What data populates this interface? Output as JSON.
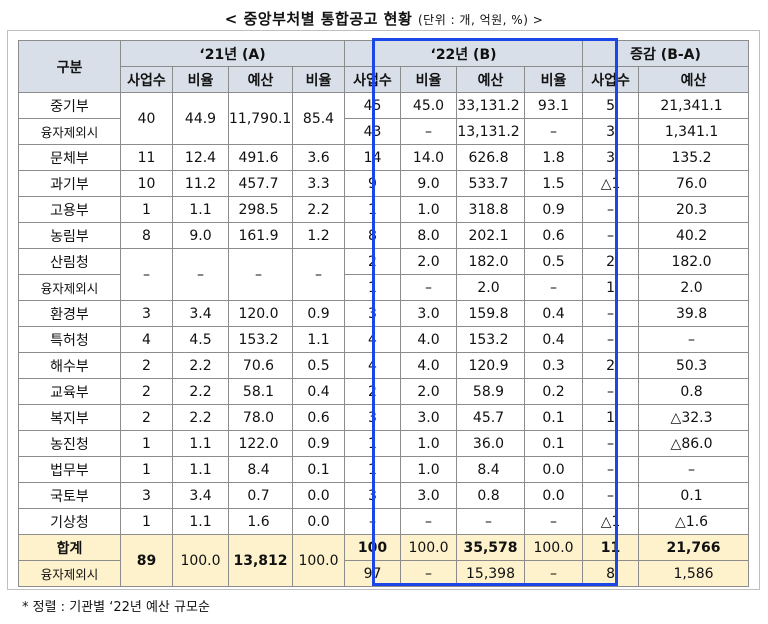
{
  "title": "< 중앙부처별 통합공고 현황",
  "unit": "(단위 : 개, 억원, %) >",
  "headers": {
    "category": "구분",
    "y21": "‘21년 (A)",
    "y22": "‘22년 (B)",
    "diff": "증감 (B-A)",
    "count": "사업수",
    "ratio": "비율",
    "budget": "예산"
  },
  "rows": [
    {
      "name": "중기부",
      "c21": "40",
      "r21": "44.9",
      "b21": "11,790.1",
      "br21": "85.4",
      "c22": "45",
      "r22": "45.0",
      "b22": "33,131.2",
      "br22": "93.1",
      "dc": "5",
      "db": "21,341.1"
    },
    {
      "name": "융자제외시",
      "c22": "43",
      "r22": "–",
      "b22": "13,131.2",
      "br22": "–",
      "dc": "3",
      "db": "1,341.1"
    },
    {
      "name": "문체부",
      "c21": "11",
      "r21": "12.4",
      "b21": "491.6",
      "br21": "3.6",
      "c22": "14",
      "r22": "14.0",
      "b22": "626.8",
      "br22": "1.8",
      "dc": "3",
      "db": "135.2"
    },
    {
      "name": "과기부",
      "c21": "10",
      "r21": "11.2",
      "b21": "457.7",
      "br21": "3.3",
      "c22": "9",
      "r22": "9.0",
      "b22": "533.7",
      "br22": "1.5",
      "dc": "△1",
      "db": "76.0"
    },
    {
      "name": "고용부",
      "c21": "1",
      "r21": "1.1",
      "b21": "298.5",
      "br21": "2.2",
      "c22": "1",
      "r22": "1.0",
      "b22": "318.8",
      "br22": "0.9",
      "dc": "–",
      "db": "20.3"
    },
    {
      "name": "농림부",
      "c21": "8",
      "r21": "9.0",
      "b21": "161.9",
      "br21": "1.2",
      "c22": "8",
      "r22": "8.0",
      "b22": "202.1",
      "br22": "0.6",
      "dc": "–",
      "db": "40.2"
    },
    {
      "name": "산림청",
      "c21": "–",
      "r21": "–",
      "b21": "–",
      "br21": "–",
      "c22": "2",
      "r22": "2.0",
      "b22": "182.0",
      "br22": "0.5",
      "dc": "2",
      "db": "182.0"
    },
    {
      "name": "융자제외시",
      "c22": "1",
      "r22": "–",
      "b22": "2.0",
      "br22": "–",
      "dc": "1",
      "db": "2.0"
    },
    {
      "name": "환경부",
      "c21": "3",
      "r21": "3.4",
      "b21": "120.0",
      "br21": "0.9",
      "c22": "3",
      "r22": "3.0",
      "b22": "159.8",
      "br22": "0.4",
      "dc": "–",
      "db": "39.8"
    },
    {
      "name": "특허청",
      "c21": "4",
      "r21": "4.5",
      "b21": "153.2",
      "br21": "1.1",
      "c22": "4",
      "r22": "4.0",
      "b22": "153.2",
      "br22": "0.4",
      "dc": "–",
      "db": "–"
    },
    {
      "name": "해수부",
      "c21": "2",
      "r21": "2.2",
      "b21": "70.6",
      "br21": "0.5",
      "c22": "4",
      "r22": "4.0",
      "b22": "120.9",
      "br22": "0.3",
      "dc": "2",
      "db": "50.3"
    },
    {
      "name": "교육부",
      "c21": "2",
      "r21": "2.2",
      "b21": "58.1",
      "br21": "0.4",
      "c22": "2",
      "r22": "2.0",
      "b22": "58.9",
      "br22": "0.2",
      "dc": "–",
      "db": "0.8"
    },
    {
      "name": "복지부",
      "c21": "2",
      "r21": "2.2",
      "b21": "78.0",
      "br21": "0.6",
      "c22": "3",
      "r22": "3.0",
      "b22": "45.7",
      "br22": "0.1",
      "dc": "1",
      "db": "△32.3"
    },
    {
      "name": "농진청",
      "c21": "1",
      "r21": "1.1",
      "b21": "122.0",
      "br21": "0.9",
      "c22": "1",
      "r22": "1.0",
      "b22": "36.0",
      "br22": "0.1",
      "dc": "–",
      "db": "△86.0"
    },
    {
      "name": "법무부",
      "c21": "1",
      "r21": "1.1",
      "b21": "8.4",
      "br21": "0.1",
      "c22": "1",
      "r22": "1.0",
      "b22": "8.4",
      "br22": "0.0",
      "dc": "–",
      "db": "–"
    },
    {
      "name": "국토부",
      "c21": "3",
      "r21": "3.4",
      "b21": "0.7",
      "br21": "0.0",
      "c22": "3",
      "r22": "3.0",
      "b22": "0.8",
      "br22": "0.0",
      "dc": "–",
      "db": "0.1"
    },
    {
      "name": "기상청",
      "c21": "1",
      "r21": "1.1",
      "b21": "1.6",
      "br21": "0.0",
      "c22": "–",
      "r22": "–",
      "b22": "–",
      "br22": "–",
      "dc": "△1",
      "db": "△1.6"
    }
  ],
  "total": {
    "name": "합계",
    "c21": "89",
    "r21": "100.0",
    "b21": "13,812",
    "br21": "100.0",
    "c22": "100",
    "r22": "100.0",
    "b22": "35,578",
    "br22": "100.0",
    "dc": "11",
    "db": "21,766"
  },
  "total_sub": {
    "name": "융자제외시",
    "c22": "97",
    "r22": "–",
    "b22": "15,398",
    "br22": "–",
    "dc": "8",
    "db": "1,586"
  },
  "note": "* 정렬 : 기관별 ‘22년 예산 규모순",
  "colors": {
    "header_bg": "#d9dfe9",
    "total_bg": "#fdf2cc",
    "highlight_border": "#1a47e5"
  }
}
